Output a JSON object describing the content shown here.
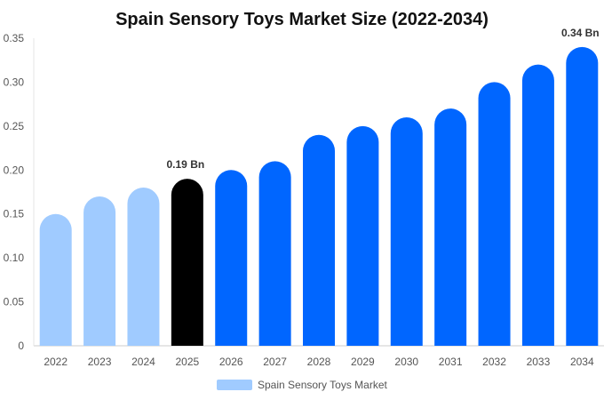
{
  "chart_data": {
    "type": "bar",
    "title": "Spain Sensory Toys Market Size (2022-2034)",
    "xlabel": "",
    "ylabel": "",
    "categories": [
      "2022",
      "2023",
      "2024",
      "2025",
      "2026",
      "2027",
      "2028",
      "2029",
      "2030",
      "2031",
      "2032",
      "2033",
      "2034"
    ],
    "series": [
      {
        "name": "Spain Sensory Toys Market",
        "values": [
          0.15,
          0.17,
          0.18,
          0.19,
          0.2,
          0.21,
          0.24,
          0.25,
          0.26,
          0.27,
          0.3,
          0.32,
          0.34
        ]
      }
    ],
    "ylim": [
      0,
      0.35
    ],
    "yticks": [
      "0",
      "0.05",
      "0.10",
      "0.15",
      "0.20",
      "0.25",
      "0.30",
      "0.35"
    ],
    "data_labels": [
      {
        "category": "2025",
        "text": "0.19 Bn"
      },
      {
        "category": "2034",
        "text": "0.34 Bn"
      }
    ],
    "bar_colors": {
      "historical": "#a0cbff",
      "current": "#000000",
      "forecast": "#0066ff"
    },
    "highlight_category": "2025",
    "legend": {
      "position": "bottom-center",
      "label": "Spain Sensory Toys Market",
      "color": "#a0cbff"
    },
    "grid": false
  }
}
